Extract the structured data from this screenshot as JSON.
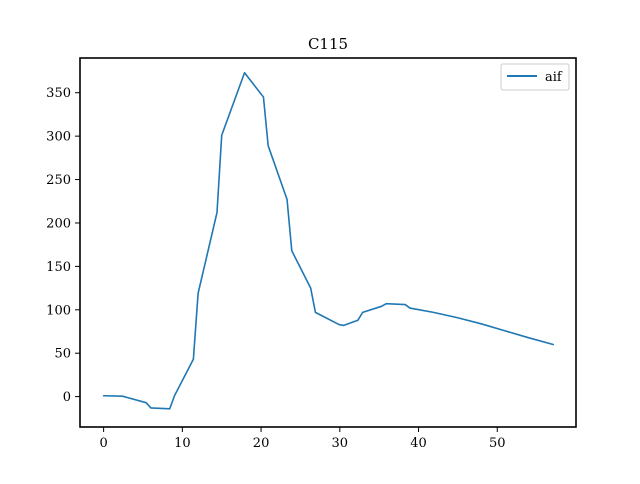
{
  "chart_data": {
    "type": "line",
    "title": "C115",
    "xlabel": "",
    "ylabel": "",
    "xlim": [
      -3,
      60
    ],
    "ylim": [
      -35,
      390
    ],
    "x_ticks": [
      0,
      10,
      20,
      30,
      40,
      50
    ],
    "y_ticks": [
      0,
      50,
      100,
      150,
      200,
      250,
      300,
      350
    ],
    "grid": false,
    "legend_position": "top-right",
    "series": [
      {
        "name": "aif",
        "color": "#1f77b4",
        "x": [
          0,
          2.4,
          5.4,
          6,
          8.4,
          9,
          11.4,
          12,
          14.4,
          15,
          17.9,
          20.3,
          20.9,
          23.3,
          23.9,
          26.3,
          26.9,
          29.9,
          30.5,
          32.3,
          32.9,
          35.3,
          35.9,
          38.3,
          38.9,
          41.9,
          44.9,
          47.9,
          50.9,
          53.9,
          57.1
        ],
        "y": [
          1,
          0.5,
          -7,
          -13,
          -14,
          1,
          43,
          119,
          212,
          301,
          373,
          345,
          289,
          227,
          168,
          125,
          97,
          83,
          82,
          88,
          97,
          104,
          107,
          106,
          102,
          97,
          91,
          84,
          76,
          68,
          60
        ]
      }
    ]
  }
}
